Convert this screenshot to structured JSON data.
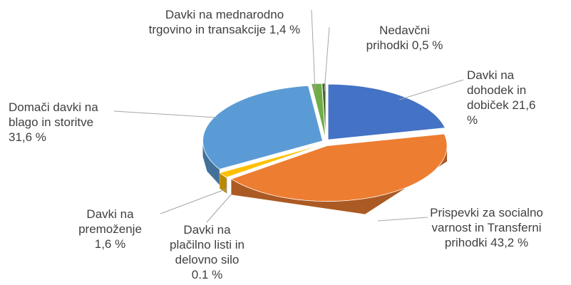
{
  "chart_data": {
    "type": "pie3d",
    "categories": [
      "Davki na dohodek in dobiček",
      "Prispevki za socialno varnost in Transferni prihodki",
      "Davki na plačilno listi in delovno silo",
      "Davki na premoženje",
      "Domači davki na blago in storitve",
      "Davki na mednarodno trgovino in transakcije",
      "Nedavčni prihodki"
    ],
    "values": [
      21.6,
      43.2,
      0.1,
      1.6,
      31.6,
      1.4,
      0.5
    ],
    "value_labels": [
      "21,6 %",
      "43,2 %",
      "0.1 %",
      "1,6 %",
      "31,6 %",
      "1,4 %",
      "0,5 %"
    ],
    "colors": [
      "#4472c4",
      "#ed7d31",
      "#a5a5a5",
      "#ffc000",
      "#5b9bd5",
      "#70ad47",
      "#43682b"
    ]
  }
}
